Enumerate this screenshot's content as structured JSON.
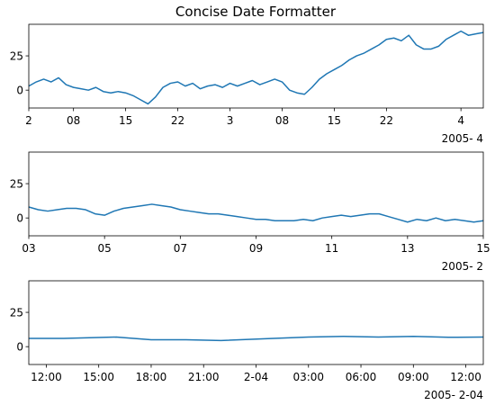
{
  "chart_data": [
    {
      "type": "line",
      "title": "Concise Date Formatter",
      "ylim": [
        -13,
        48
      ],
      "yticks": [
        0,
        25
      ],
      "ytick_labels": [
        "0",
        "25"
      ],
      "xlim": [
        "2005-02-02",
        "2005-04-04"
      ],
      "xtick_labels": [
        "2",
        "08",
        "15",
        "22",
        "3",
        "08",
        "15",
        "22",
        "4"
      ],
      "xtick_dates": [
        "2005-02-02",
        "2005-02-08",
        "2005-02-15",
        "2005-02-22",
        "2005-03-01",
        "2005-03-08",
        "2005-03-15",
        "2005-03-22",
        "2005-04-01"
      ],
      "offset_label": "2005- 4",
      "color": "#1f77b4",
      "series": [
        {
          "x": [
            "2005-02-02",
            "2005-02-03",
            "2005-02-04",
            "2005-02-05",
            "2005-02-06",
            "2005-02-07",
            "2005-02-08",
            "2005-02-09",
            "2005-02-10",
            "2005-02-11",
            "2005-02-12",
            "2005-02-13",
            "2005-02-14",
            "2005-02-15",
            "2005-02-16",
            "2005-02-17",
            "2005-02-18",
            "2005-02-19",
            "2005-02-20",
            "2005-02-21",
            "2005-02-22",
            "2005-02-23",
            "2005-02-24",
            "2005-02-25",
            "2005-02-26",
            "2005-02-27",
            "2005-02-28",
            "2005-03-01",
            "2005-03-02",
            "2005-03-03",
            "2005-03-04",
            "2005-03-05",
            "2005-03-06",
            "2005-03-07",
            "2005-03-08",
            "2005-03-09",
            "2005-03-10",
            "2005-03-11",
            "2005-03-12",
            "2005-03-13",
            "2005-03-14",
            "2005-03-15",
            "2005-03-16",
            "2005-03-17",
            "2005-03-18",
            "2005-03-19",
            "2005-03-20",
            "2005-03-21",
            "2005-03-22",
            "2005-03-23",
            "2005-03-24",
            "2005-03-25",
            "2005-03-26",
            "2005-03-27",
            "2005-03-28",
            "2005-03-29",
            "2005-03-30",
            "2005-03-31",
            "2005-04-01",
            "2005-04-02",
            "2005-04-03",
            "2005-04-04"
          ],
          "y": [
            3,
            6,
            8,
            6,
            9,
            4,
            2,
            1,
            0,
            2,
            -1,
            -2,
            -1,
            -2,
            -4,
            -7,
            -10,
            -5,
            2,
            5,
            6,
            3,
            5,
            1,
            3,
            4,
            2,
            5,
            3,
            5,
            7,
            4,
            6,
            8,
            6,
            0,
            -2,
            -3,
            2,
            8,
            12,
            15,
            18,
            22,
            25,
            27,
            30,
            33,
            37,
            38,
            36,
            40,
            33,
            30,
            30,
            32,
            37,
            40,
            43,
            40,
            41,
            42
          ]
        }
      ]
    },
    {
      "type": "line",
      "ylim": [
        -13,
        48
      ],
      "yticks": [
        0,
        25
      ],
      "ytick_labels": [
        "0",
        "25"
      ],
      "xlim": [
        "2005-02-03",
        "2005-02-15"
      ],
      "xtick_labels": [
        "03",
        "05",
        "07",
        "09",
        "11",
        "13",
        "15"
      ],
      "xtick_dates": [
        "2005-02-03",
        "2005-02-05",
        "2005-02-07",
        "2005-02-09",
        "2005-02-11",
        "2005-02-13",
        "2005-02-15"
      ],
      "offset_label": "2005- 2",
      "color": "#1f77b4",
      "series": [
        {
          "x": [
            "2005-02-03",
            "2005-02-03T06:00",
            "2005-02-03T12:00",
            "2005-02-03T18:00",
            "2005-02-04",
            "2005-02-04T06:00",
            "2005-02-04T12:00",
            "2005-02-04T18:00",
            "2005-02-05",
            "2005-02-05T06:00",
            "2005-02-05T12:00",
            "2005-02-05T18:00",
            "2005-02-06",
            "2005-02-06T06:00",
            "2005-02-06T12:00",
            "2005-02-06T18:00",
            "2005-02-07",
            "2005-02-07T06:00",
            "2005-02-07T12:00",
            "2005-02-07T18:00",
            "2005-02-08",
            "2005-02-08T06:00",
            "2005-02-08T12:00",
            "2005-02-08T18:00",
            "2005-02-09",
            "2005-02-09T06:00",
            "2005-02-09T12:00",
            "2005-02-09T18:00",
            "2005-02-10",
            "2005-02-10T06:00",
            "2005-02-10T12:00",
            "2005-02-10T18:00",
            "2005-02-11",
            "2005-02-11T06:00",
            "2005-02-11T12:00",
            "2005-02-11T18:00",
            "2005-02-12",
            "2005-02-12T06:00",
            "2005-02-12T12:00",
            "2005-02-12T18:00",
            "2005-02-13",
            "2005-02-13T06:00",
            "2005-02-13T12:00",
            "2005-02-13T18:00",
            "2005-02-14",
            "2005-02-14T06:00",
            "2005-02-14T12:00",
            "2005-02-14T18:00",
            "2005-02-15"
          ],
          "y": [
            8,
            6,
            5,
            6,
            7,
            7,
            6,
            3,
            2,
            5,
            7,
            8,
            9,
            10,
            9,
            8,
            6,
            5,
            4,
            3,
            3,
            2,
            1,
            0,
            -1,
            -1,
            -2,
            -2,
            -2,
            -1,
            -2,
            0,
            1,
            2,
            1,
            2,
            3,
            3,
            1,
            -1,
            -3,
            -1,
            -2,
            0,
            -2,
            -1,
            -2,
            -3,
            -2
          ]
        }
      ]
    },
    {
      "type": "line",
      "ylim": [
        -13,
        48
      ],
      "yticks": [
        0,
        25
      ],
      "ytick_labels": [
        "0",
        "25"
      ],
      "xlim": [
        "2005-02-03T11:00",
        "2005-02-04T13:00"
      ],
      "xtick_labels": [
        "12:00",
        "15:00",
        "18:00",
        "21:00",
        "2-04",
        "03:00",
        "06:00",
        "09:00",
        "12:00"
      ],
      "xtick_dates": [
        "2005-02-03T12:00",
        "2005-02-03T15:00",
        "2005-02-03T18:00",
        "2005-02-03T21:00",
        "2005-02-04T00:00",
        "2005-02-04T03:00",
        "2005-02-04T06:00",
        "2005-02-04T09:00",
        "2005-02-04T12:00"
      ],
      "offset_label": "2005- 2-04",
      "color": "#1f77b4",
      "series": [
        {
          "x": [
            "2005-02-03T11:00",
            "2005-02-03T13:00",
            "2005-02-03T16:00",
            "2005-02-03T18:00",
            "2005-02-03T20:00",
            "2005-02-03T22:00",
            "2005-02-04T01:00",
            "2005-02-04T03:00",
            "2005-02-04T05:00",
            "2005-02-04T07:00",
            "2005-02-04T09:00",
            "2005-02-04T11:00",
            "2005-02-04T13:00"
          ],
          "y": [
            6,
            6,
            7,
            5,
            5,
            4.5,
            6,
            7,
            7.5,
            7,
            7.5,
            6.8,
            7
          ]
        }
      ]
    }
  ]
}
